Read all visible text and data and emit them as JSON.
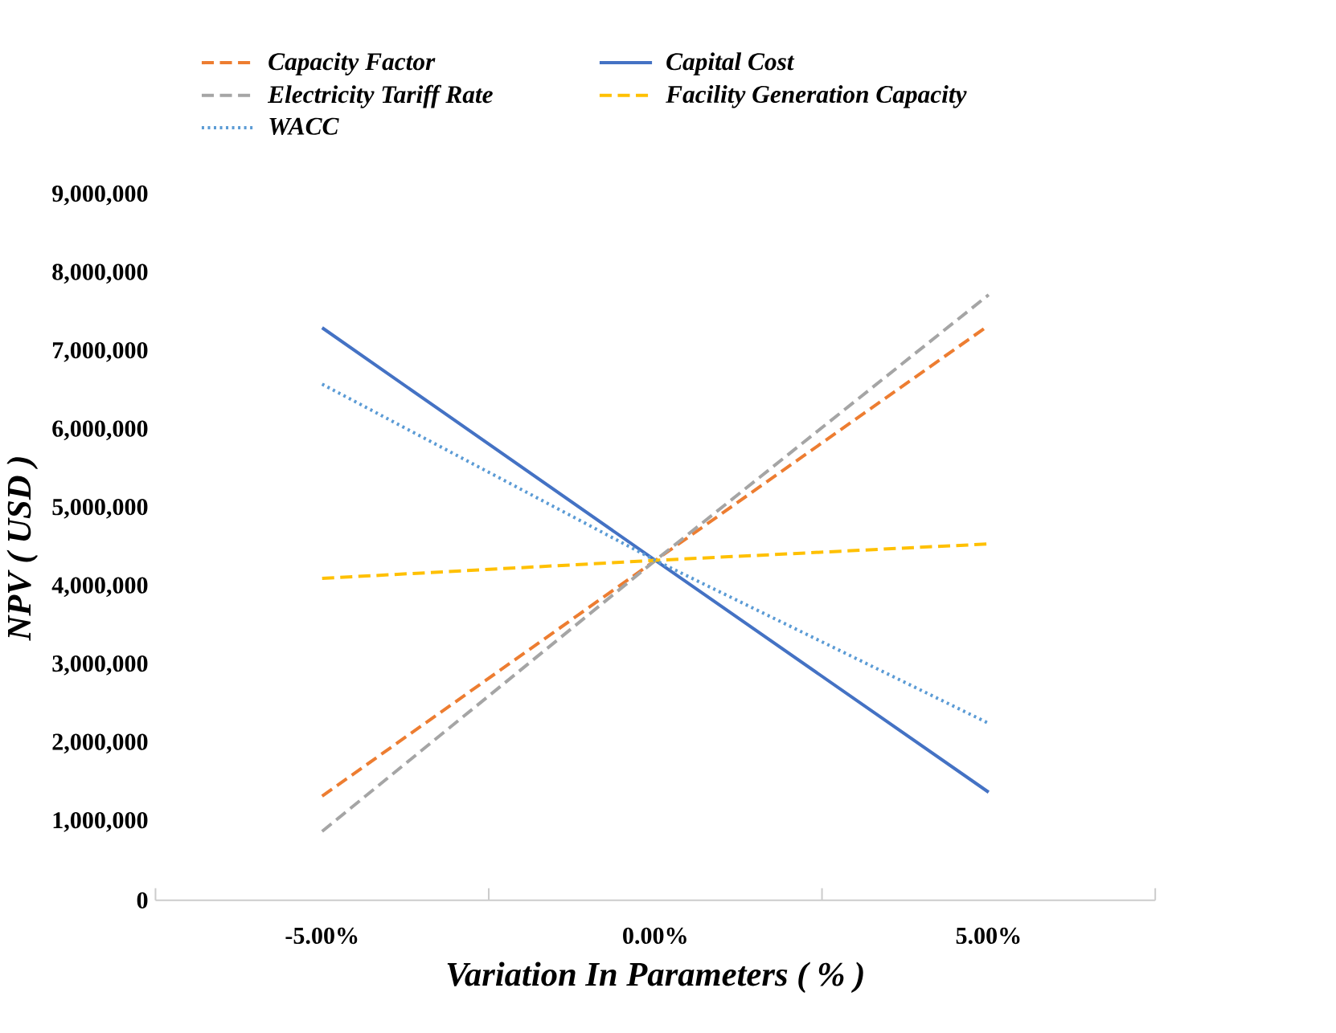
{
  "chart_data": {
    "type": "line",
    "xlabel": "Variation In Parameters ( % )",
    "ylabel": "NPV ( USD )",
    "categories": [
      "-5.00%",
      "0.00%",
      "5.00%"
    ],
    "series": [
      {
        "name": "Capacity Factor",
        "color": "#ed7d31",
        "line_style": "dashed",
        "values": [
          1330000,
          4340000,
          7340000
        ]
      },
      {
        "name": "Capital Cost",
        "color": "#4472c4",
        "line_style": "solid",
        "values": [
          7310000,
          4340000,
          1380000
        ]
      },
      {
        "name": "Electricity Tariff Rate",
        "color": "#a5a5a5",
        "line_style": "dashed",
        "values": [
          880000,
          4340000,
          7730000
        ]
      },
      {
        "name": "Facility Generation Capacity",
        "color": "#ffc000",
        "line_style": "dashed",
        "values": [
          4110000,
          4340000,
          4550000
        ]
      },
      {
        "name": "WACC",
        "color": "#5b9bd5",
        "line_style": "dotted",
        "values": [
          6590000,
          4340000,
          2260000
        ]
      }
    ],
    "ylim": [
      0,
      9000000
    ],
    "yticks": [
      0,
      {
        "value": 1000000,
        "label": "1,000,000"
      },
      {
        "value": 2000000,
        "label": "2,000,000"
      },
      {
        "value": 3000000,
        "label": "3,000,000"
      },
      {
        "value": 4000000,
        "label": "4,000,000"
      },
      {
        "value": 5000000,
        "label": "5,000,000"
      },
      {
        "value": 6000000,
        "label": "6,000,000"
      },
      {
        "value": 7000000,
        "label": "7,000,000"
      },
      {
        "value": 8000000,
        "label": "8,000,000"
      },
      {
        "value": 9000000,
        "label": "9,000,000"
      }
    ],
    "grid": false,
    "legend": "top",
    "marker": "none"
  }
}
